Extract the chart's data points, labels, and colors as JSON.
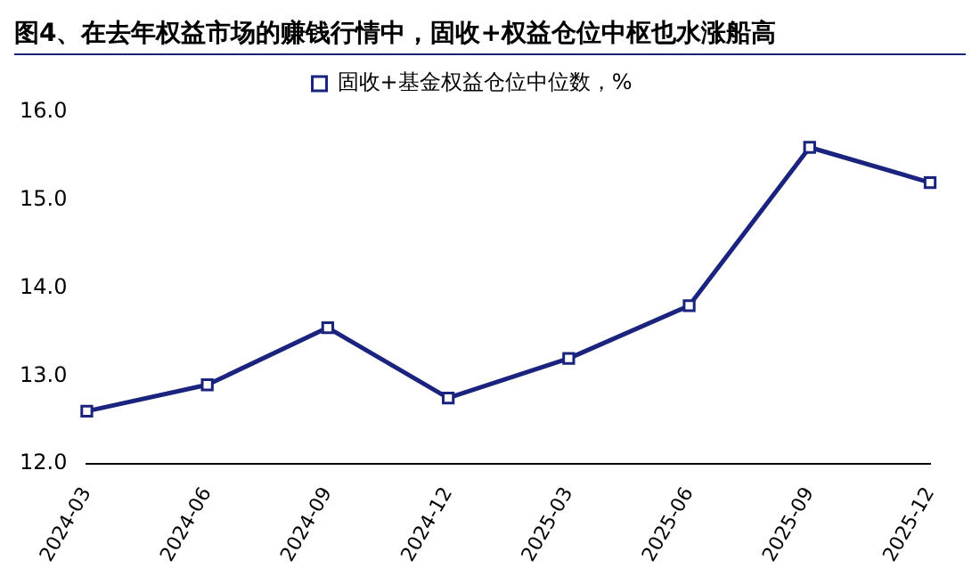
{
  "chart_data": {
    "type": "line",
    "title": "图4、在去年权益市场的赚钱行情中，固收+权益仓位中枢也水涨船高",
    "categories": [
      "2024-03",
      "2024-06",
      "2024-09",
      "2024-12",
      "2025-03",
      "2025-06",
      "2025-09",
      "2025-12"
    ],
    "series": [
      {
        "name": "固收+基金权益仓位中位数，%",
        "color": "#1a237e",
        "values": [
          12.6,
          12.9,
          13.55,
          12.75,
          13.2,
          13.8,
          15.6,
          15.2
        ]
      }
    ],
    "ylim": [
      12,
      16
    ],
    "yticks": [
      {
        "value": 12,
        "label": "12.0"
      },
      {
        "value": 13,
        "label": "13.0"
      },
      {
        "value": 14,
        "label": "14.0"
      },
      {
        "value": 15,
        "label": "15.0"
      },
      {
        "value": 16,
        "label": "16.0"
      }
    ],
    "grid": false,
    "legend": "top",
    "marker": "square",
    "line_style": "solid"
  }
}
